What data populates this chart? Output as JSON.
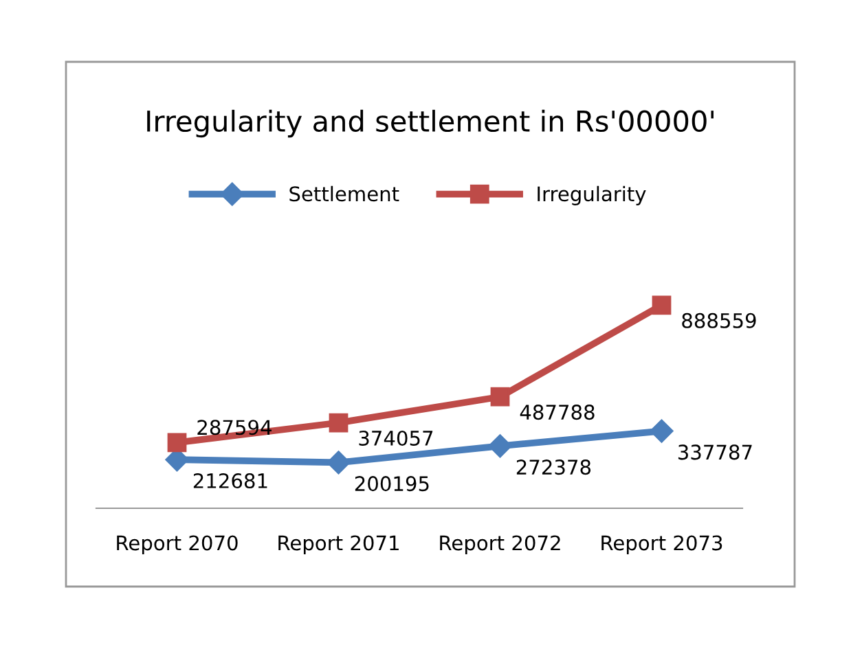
{
  "chart_data": {
    "type": "line",
    "title": "Irregularity and settlement in Rs'00000'",
    "categories": [
      "Report 2070",
      "Report 2071",
      "Report 2072",
      "Report 2073"
    ],
    "series": [
      {
        "name": "Settlement",
        "color": "#4a7ebb",
        "marker": "diamond",
        "values": [
          212681,
          200195,
          272378,
          337787
        ]
      },
      {
        "name": "Irregularity",
        "color": "#be4b48",
        "marker": "square",
        "values": [
          287594,
          374057,
          487788,
          888559
        ]
      }
    ],
    "data_labels": true,
    "legend": "top",
    "grid": false,
    "line_style": "solid"
  }
}
